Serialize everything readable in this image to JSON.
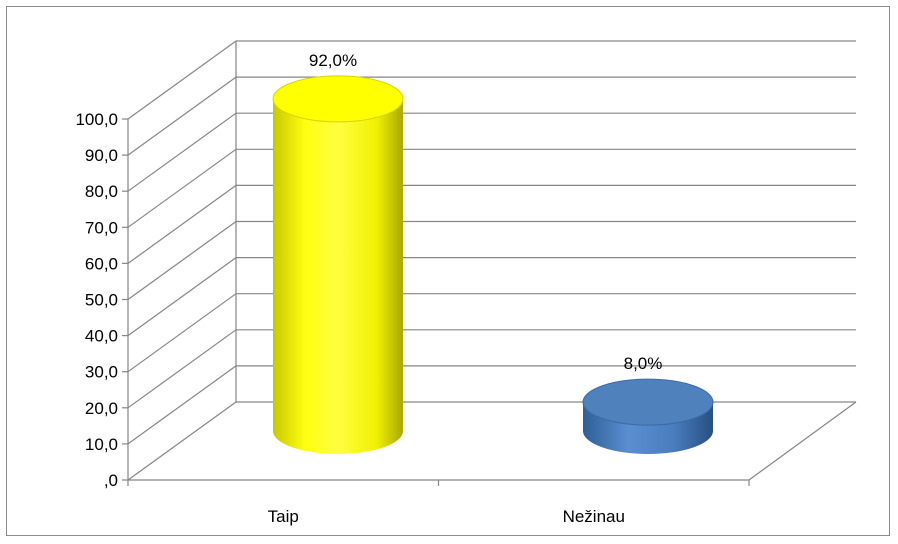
{
  "chart_data": {
    "type": "bar",
    "style": "3d-cylinder",
    "categories": [
      "Taip",
      "Nežinau"
    ],
    "values": [
      92.0,
      8.0
    ],
    "data_labels": [
      "92,0%",
      "8,0%"
    ],
    "colors": [
      "#ffff00",
      "#4f81bd"
    ],
    "ylim": [
      0,
      100
    ],
    "yticks": [
      ",0",
      "10,0",
      "20,0",
      "30,0",
      "40,0",
      "50,0",
      "60,0",
      "70,0",
      "80,0",
      "90,0",
      "100,0"
    ],
    "grid": true,
    "legend": "none"
  }
}
